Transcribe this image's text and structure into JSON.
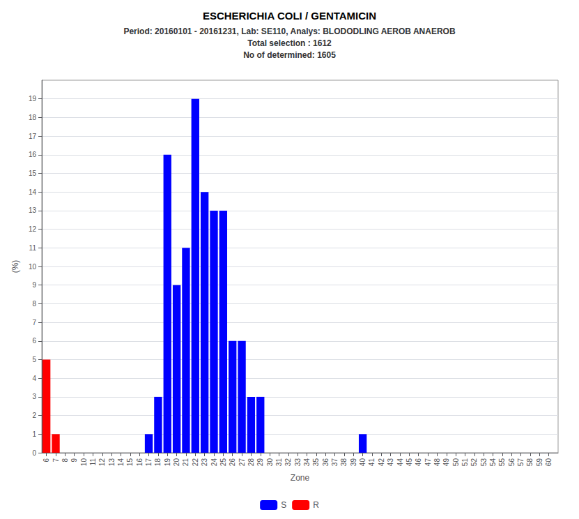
{
  "chart_data": {
    "type": "bar",
    "title": "ESCHERICHIA COLI / GENTAMICIN",
    "subtitle": "Period: 20160101 - 20161231, Lab: SE110, Analys: BLODODLING AEROB ANAEROB\nTotal selection : 1612\nNo of determined: 1605",
    "x": [
      6,
      7,
      8,
      9,
      10,
      11,
      12,
      13,
      14,
      15,
      16,
      17,
      18,
      19,
      20,
      21,
      22,
      23,
      24,
      25,
      26,
      27,
      28,
      29,
      30,
      31,
      32,
      33,
      34,
      35,
      36,
      37,
      38,
      39,
      40,
      41,
      42,
      43,
      44,
      45,
      46,
      47,
      48,
      49,
      50,
      51,
      52,
      53,
      54,
      55,
      56,
      57,
      58,
      59,
      60
    ],
    "series": [
      {
        "name": "S",
        "color": "#0000ff",
        "values": [
          null,
          null,
          0,
          0,
          0,
          0,
          0,
          0,
          0,
          0,
          0,
          1,
          3,
          16,
          9,
          11,
          19,
          14,
          13,
          13,
          6,
          6,
          3,
          3,
          0,
          0,
          0,
          0,
          0,
          0,
          0,
          0,
          0,
          0,
          1,
          0,
          0,
          0,
          0,
          0,
          0,
          0,
          0,
          0,
          0,
          0,
          0,
          0,
          0,
          0,
          0,
          0,
          0,
          0,
          0
        ]
      },
      {
        "name": "R",
        "color": "#ff0000",
        "values": [
          5,
          1,
          null,
          null,
          null,
          null,
          null,
          null,
          null,
          null,
          null,
          null,
          null,
          null,
          null,
          null,
          null,
          null,
          null,
          null,
          null,
          null,
          null,
          null,
          null,
          null,
          null,
          null,
          null,
          null,
          null,
          null,
          null,
          null,
          null,
          null,
          null,
          null,
          null,
          null,
          null,
          null,
          null,
          null,
          null,
          null,
          null,
          null,
          null,
          null,
          null,
          null,
          null,
          null,
          null
        ]
      }
    ],
    "xlabel": "Zone",
    "ylabel": "(%)",
    "xlim": [
      5.5,
      61
    ],
    "xticks": [
      6,
      7,
      8,
      9,
      10,
      11,
      12,
      13,
      14,
      15,
      16,
      17,
      18,
      19,
      20,
      21,
      22,
      23,
      24,
      25,
      26,
      27,
      28,
      29,
      30,
      31,
      32,
      33,
      34,
      35,
      36,
      37,
      38,
      39,
      40,
      41,
      42,
      43,
      44,
      45,
      46,
      47,
      48,
      49,
      50,
      51,
      52,
      53,
      54,
      55,
      56,
      57,
      58,
      59,
      60
    ],
    "ylim": [
      0,
      20
    ],
    "yticks": [
      0,
      1,
      2,
      3,
      4,
      5,
      6,
      7,
      8,
      9,
      10,
      11,
      12,
      13,
      14,
      15,
      16,
      17,
      18,
      19
    ],
    "grid": true,
    "legend": "bottom"
  }
}
